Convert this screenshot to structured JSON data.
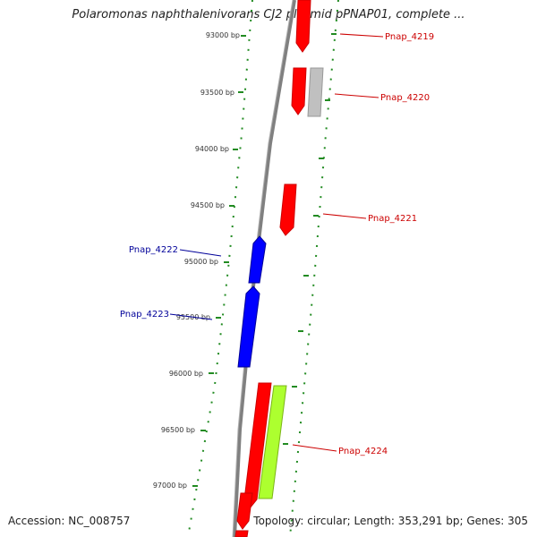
{
  "map": {
    "title": "Polaromonas naphthalenivorans CJ2 plasmid pPNAP01, complete ...",
    "accession": "Accession: NC_008757",
    "summary": "Topology: circular; Length: 353,291 bp; Genes: 305"
  },
  "ticks": [
    {
      "label": "93000 bp",
      "bp": 93000
    },
    {
      "label": "93500 bp",
      "bp": 93500
    },
    {
      "label": "94000 bp",
      "bp": 94000
    },
    {
      "label": "94500 bp",
      "bp": 94500
    },
    {
      "label": "95000 bp",
      "bp": 95000
    },
    {
      "label": "95500 bp",
      "bp": 95500
    },
    {
      "label": "96000 bp",
      "bp": 96000
    },
    {
      "label": "96500 bp",
      "bp": 96500
    },
    {
      "label": "97000 bp",
      "bp": 97000
    }
  ],
  "genes": [
    {
      "label": "",
      "strand": "forward",
      "color": "#ff0000"
    },
    {
      "label": "Pnap_4219",
      "strand": "forward",
      "color": "#ff0000"
    },
    {
      "label": "Pnap_4220",
      "strand": "forward",
      "color": "#ff0000"
    },
    {
      "label": "",
      "strand": "forward",
      "color": "#c0c0c0"
    },
    {
      "label": "Pnap_4221",
      "strand": "forward",
      "color": "#ff0000"
    },
    {
      "label": "Pnap_4222",
      "strand": "reverse",
      "color": "#0000ff"
    },
    {
      "label": "Pnap_4223",
      "strand": "reverse",
      "color": "#0000ff"
    },
    {
      "label": "Pnap_4224",
      "strand": "forward",
      "color": "#ff0000"
    },
    {
      "label": "",
      "strand": "forward",
      "color": "#adff2f"
    },
    {
      "label": "",
      "strand": "forward",
      "color": "#ff0000"
    },
    {
      "label": "",
      "strand": "forward",
      "color": "#ff0000"
    }
  ],
  "colors": {
    "backbone": "#808080",
    "ticks": "#228b22",
    "forward_label": "#cc0000",
    "reverse_label": "#000099"
  }
}
